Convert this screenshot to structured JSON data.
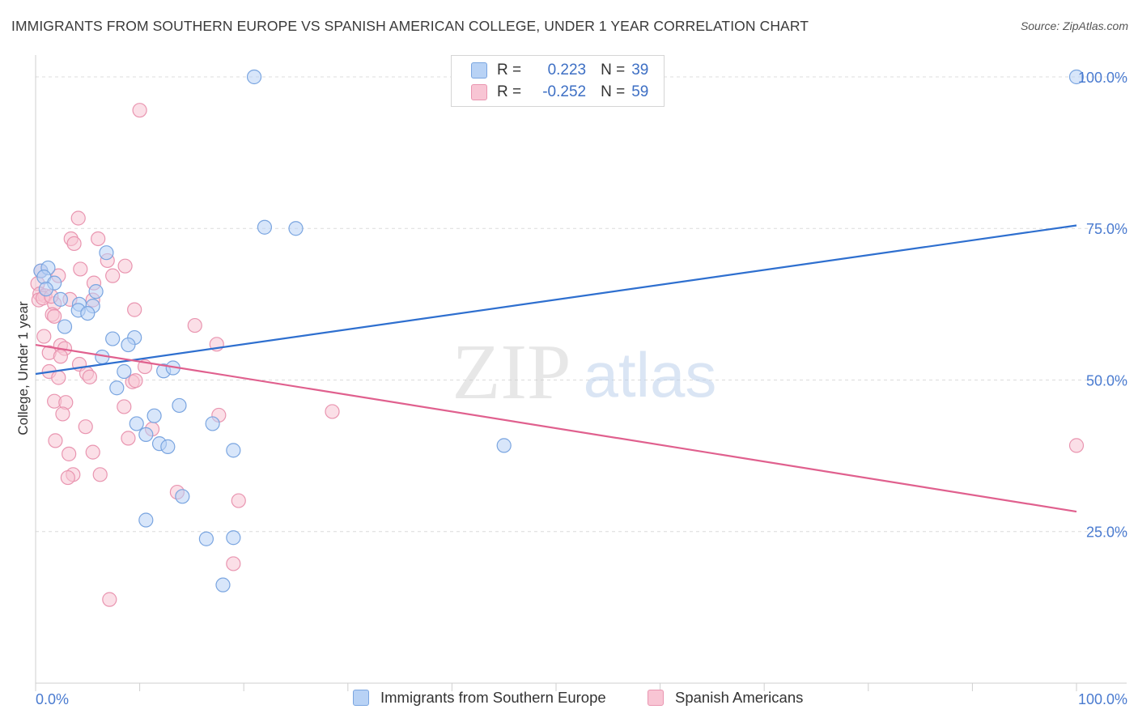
{
  "title": "IMMIGRANTS FROM SOUTHERN EUROPE VS SPANISH AMERICAN COLLEGE, UNDER 1 YEAR CORRELATION CHART",
  "source": "Source: ZipAtlas.com",
  "watermark": {
    "zip": "ZIP",
    "atlas": "atlas"
  },
  "legend_stats": {
    "rows": [
      {
        "r_label": "R =",
        "r_value": "0.223",
        "n_label": "N =",
        "n_value": "39"
      },
      {
        "r_label": "R =",
        "r_value": "-0.252",
        "n_label": "N =",
        "n_value": "59"
      }
    ]
  },
  "colors": {
    "blue_fill": "#b8d2f5",
    "blue_stroke": "#7aa5e0",
    "blue_line": "#2e6fcf",
    "pink_fill": "#f8c5d4",
    "pink_stroke": "#e995b0",
    "pink_line": "#e0608e",
    "grid": "#dcdcdc",
    "axis_text": "#4a7bd0"
  },
  "chart_data": {
    "type": "scatter",
    "title": "IMMIGRANTS FROM SOUTHERN EUROPE VS SPANISH AMERICAN COLLEGE, UNDER 1 YEAR CORRELATION CHART",
    "xlabel": "",
    "ylabel": "College, Under 1 year",
    "xlim": [
      0,
      100
    ],
    "ylim": [
      0,
      102
    ],
    "x_tick_labels": [
      "0.0%",
      "100.0%"
    ],
    "y_ticks": [
      25,
      50,
      75,
      100
    ],
    "y_tick_labels": [
      "25.0%",
      "50.0%",
      "75.0%",
      "100.0%"
    ],
    "legend_position": "bottom",
    "series": [
      {
        "name": "Immigrants from Southern Europe",
        "color": "blue",
        "trend": {
          "x": [
            0,
            100
          ],
          "y": [
            51,
            75.5
          ]
        },
        "points": [
          [
            21,
            100
          ],
          [
            100,
            100
          ],
          [
            22,
            75.2
          ],
          [
            25,
            75
          ],
          [
            0.5,
            68
          ],
          [
            1.2,
            68.5
          ],
          [
            0.8,
            67
          ],
          [
            1.8,
            66
          ],
          [
            1,
            65
          ],
          [
            6.8,
            71
          ],
          [
            5.8,
            64.6
          ],
          [
            2.4,
            63.3
          ],
          [
            4.2,
            62.5
          ],
          [
            5.5,
            62.2
          ],
          [
            4.1,
            61.5
          ],
          [
            5,
            61
          ],
          [
            2.8,
            58.8
          ],
          [
            7.4,
            56.8
          ],
          [
            9.5,
            57
          ],
          [
            8.9,
            55.8
          ],
          [
            6.4,
            53.8
          ],
          [
            8.5,
            51.4
          ],
          [
            12.3,
            51.5
          ],
          [
            13.2,
            52
          ],
          [
            7.8,
            48.7
          ],
          [
            13.8,
            45.8
          ],
          [
            11.4,
            44.1
          ],
          [
            9.7,
            42.8
          ],
          [
            17,
            42.8
          ],
          [
            10.6,
            41
          ],
          [
            11.9,
            39.5
          ],
          [
            12.7,
            39
          ],
          [
            19,
            38.4
          ],
          [
            45,
            39.2
          ],
          [
            14.1,
            30.8
          ],
          [
            10.6,
            26.9
          ],
          [
            16.4,
            23.8
          ],
          [
            19,
            24
          ],
          [
            18,
            16.2
          ]
        ]
      },
      {
        "name": "Spanish Americans",
        "color": "pink",
        "trend": {
          "x": [
            0,
            100
          ],
          "y": [
            55.8,
            28.3
          ]
        },
        "points": [
          [
            10,
            94.5
          ],
          [
            4.1,
            76.7
          ],
          [
            3.4,
            73.3
          ],
          [
            6,
            73.3
          ],
          [
            3.7,
            72.5
          ],
          [
            8.6,
            68.8
          ],
          [
            4.3,
            68.3
          ],
          [
            0.5,
            68
          ],
          [
            2.2,
            67.2
          ],
          [
            7.4,
            67.2
          ],
          [
            6.9,
            69.7
          ],
          [
            0.2,
            65.9
          ],
          [
            5.6,
            66
          ],
          [
            0.4,
            64.2
          ],
          [
            0.9,
            63.9
          ],
          [
            0.3,
            63.2
          ],
          [
            3.3,
            63.3
          ],
          [
            5.5,
            63.2
          ],
          [
            1.8,
            62.6
          ],
          [
            9.5,
            61.6
          ],
          [
            1.6,
            60.8
          ],
          [
            1.8,
            60.5
          ],
          [
            15.3,
            59
          ],
          [
            0.8,
            57.2
          ],
          [
            2.4,
            55.7
          ],
          [
            2.8,
            55.2
          ],
          [
            17.4,
            55.9
          ],
          [
            1.3,
            54.5
          ],
          [
            2.4,
            53.9
          ],
          [
            4.2,
            52.6
          ],
          [
            10.5,
            52.2
          ],
          [
            1.3,
            51.4
          ],
          [
            4.9,
            51.1
          ],
          [
            2.2,
            50.4
          ],
          [
            5.2,
            50.5
          ],
          [
            9.3,
            49.7
          ],
          [
            9.6,
            49.9
          ],
          [
            1.8,
            46.5
          ],
          [
            2.9,
            46.3
          ],
          [
            8.5,
            45.6
          ],
          [
            2.6,
            44.4
          ],
          [
            17.6,
            44.2
          ],
          [
            28.5,
            44.8
          ],
          [
            4.8,
            42.3
          ],
          [
            11.2,
            41.9
          ],
          [
            8.9,
            40.4
          ],
          [
            1.9,
            40
          ],
          [
            3.2,
            37.8
          ],
          [
            5.5,
            38.1
          ],
          [
            100,
            39.2
          ],
          [
            3.6,
            34.4
          ],
          [
            6.2,
            34.4
          ],
          [
            3.1,
            33.9
          ],
          [
            13.6,
            31.5
          ],
          [
            19.5,
            30.1
          ],
          [
            19,
            19.7
          ],
          [
            7.1,
            13.8
          ],
          [
            0.7,
            63.5
          ],
          [
            1.5,
            63.8
          ]
        ]
      }
    ]
  },
  "bottom_legend": {
    "items": [
      {
        "label": "Immigrants from Southern Europe"
      },
      {
        "label": "Spanish Americans"
      }
    ]
  }
}
